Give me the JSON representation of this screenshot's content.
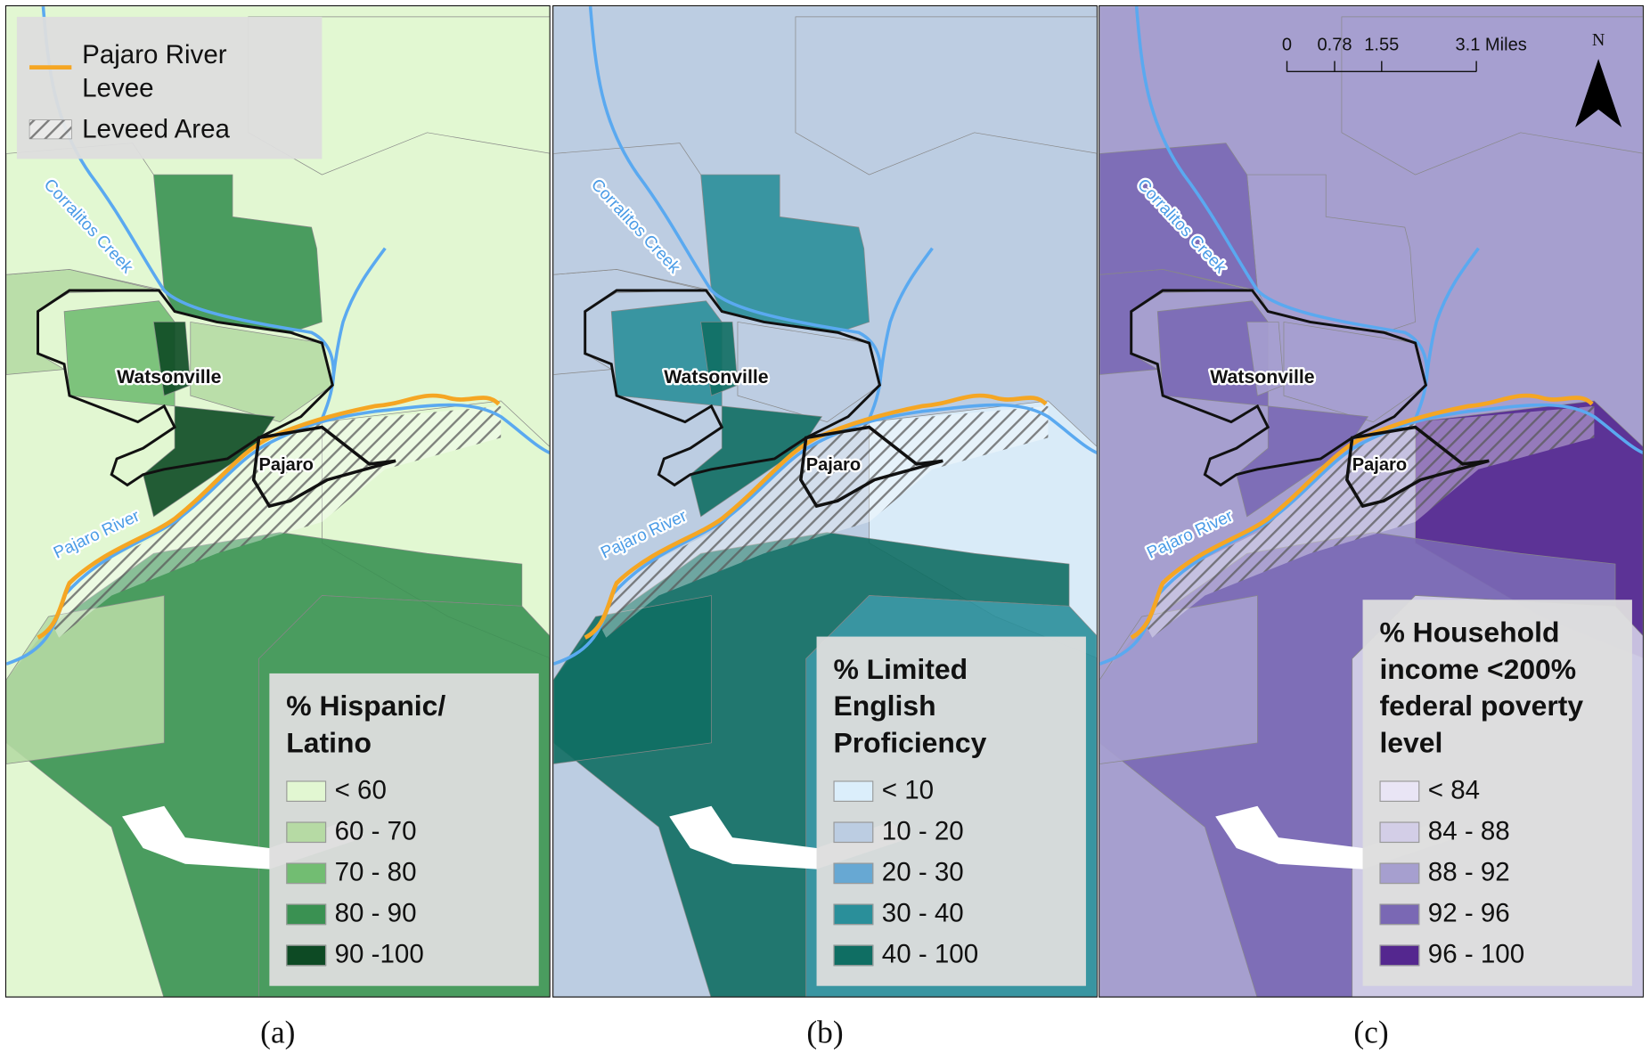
{
  "panels": [
    {
      "caption": "(a)",
      "legend": {
        "title": "% Hispanic/ Latino",
        "items": [
          {
            "label": "< 60",
            "color": "#e2f7d2"
          },
          {
            "label": "60 - 70",
            "color": "#b6daa4"
          },
          {
            "label": "70 - 80",
            "color": "#72bd72"
          },
          {
            "label": "80 - 90",
            "color": "#3a9152"
          },
          {
            "label": "90 -100",
            "color": "#0d4a24"
          }
        ]
      }
    },
    {
      "caption": "(b)",
      "legend": {
        "title": "% Limited English Proficiency",
        "items": [
          {
            "label": "< 10",
            "color": "#dbeefb"
          },
          {
            "label": "10 - 20",
            "color": "#bccde2"
          },
          {
            "label": "20 - 30",
            "color": "#67a8d3"
          },
          {
            "label": "30 - 40",
            "color": "#2a8f9a"
          },
          {
            "label": "40 - 100",
            "color": "#0f6e63"
          }
        ]
      }
    },
    {
      "caption": "(c)",
      "legend": {
        "title": "% Household income <200% federal poverty level",
        "items": [
          {
            "label": "< 84",
            "color": "#e9e5f5"
          },
          {
            "label": "84 - 88",
            "color": "#d3cee7"
          },
          {
            "label": "88 - 92",
            "color": "#a69fcf"
          },
          {
            "label": "92 - 96",
            "color": "#7a68b4"
          },
          {
            "label": "96 - 100",
            "color": "#54278f"
          }
        ]
      }
    }
  ],
  "levee_legend": {
    "levee": "Pajaro River Levee",
    "leveed_area": "Leveed Area"
  },
  "place_labels": {
    "watsonville": "Watsonville",
    "pajaro": "Pajaro",
    "corralitos_creek": "Corralitos Creek",
    "pajaro_river": "Pajaro River"
  },
  "scale_bar": {
    "ticks": [
      "0",
      "0.78",
      "1.55",
      "3.1 Miles"
    ]
  },
  "north_arrow": "N"
}
